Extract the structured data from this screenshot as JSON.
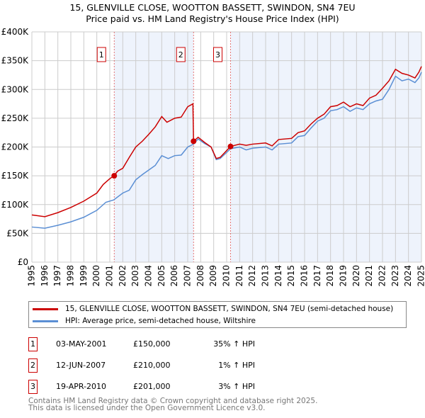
{
  "chart_data": {
    "type": "line",
    "title": "15, GLENVILLE CLOSE, WOOTTON BASSETT, SWINDON, SN4 7EU",
    "subtitle": "Price paid vs. HM Land Registry's House Price Index (HPI)",
    "xlim": [
      1995,
      2025
    ],
    "ylim": [
      0,
      400000
    ],
    "y_ticks": [
      {
        "v": 0,
        "label": "£0"
      },
      {
        "v": 50000,
        "label": "£50K"
      },
      {
        "v": 100000,
        "label": "£100K"
      },
      {
        "v": 150000,
        "label": "£150K"
      },
      {
        "v": 200000,
        "label": "£200K"
      },
      {
        "v": 250000,
        "label": "£250K"
      },
      {
        "v": 300000,
        "label": "£300K"
      },
      {
        "v": 350000,
        "label": "£350K"
      },
      {
        "v": 400000,
        "label": "£400K"
      }
    ],
    "x_ticks": [
      "1995",
      "1996",
      "1997",
      "1998",
      "1999",
      "2000",
      "2001",
      "2002",
      "2003",
      "2004",
      "2005",
      "2006",
      "2007",
      "2008",
      "2009",
      "2010",
      "2011",
      "2012",
      "2013",
      "2014",
      "2015",
      "2016",
      "2017",
      "2018",
      "2019",
      "2020",
      "2021",
      "2022",
      "2023",
      "2024",
      "2025"
    ],
    "grid": true,
    "series": [
      {
        "name": "15, GLENVILLE CLOSE, WOOTTON BASSETT, SWINDON, SN4 7EU (semi-detached house)",
        "color": "#cc0000",
        "points": [
          [
            1995,
            82000
          ],
          [
            1996,
            79000
          ],
          [
            1997,
            86000
          ],
          [
            1998,
            95000
          ],
          [
            1999,
            106000
          ],
          [
            2000,
            120000
          ],
          [
            2000.5,
            135000
          ],
          [
            2001,
            145000
          ],
          [
            2001.33,
            150000
          ],
          [
            2001.6,
            158000
          ],
          [
            2002,
            163000
          ],
          [
            2002.5,
            182000
          ],
          [
            2003,
            200000
          ],
          [
            2003.5,
            210000
          ],
          [
            2004,
            222000
          ],
          [
            2004.5,
            235000
          ],
          [
            2005,
            253000
          ],
          [
            2005.4,
            243000
          ],
          [
            2006,
            250000
          ],
          [
            2006.5,
            252000
          ],
          [
            2007,
            270000
          ],
          [
            2007.4,
            275000
          ],
          [
            2007.45,
            210000
          ],
          [
            2007.8,
            217000
          ],
          [
            2008.3,
            208000
          ],
          [
            2008.8,
            200000
          ],
          [
            2009.2,
            180000
          ],
          [
            2009.5,
            182000
          ],
          [
            2010.3,
            201000
          ],
          [
            2011,
            205000
          ],
          [
            2011.5,
            203000
          ],
          [
            2012,
            205000
          ],
          [
            2013,
            207000
          ],
          [
            2013.5,
            202000
          ],
          [
            2014,
            213000
          ],
          [
            2015,
            215000
          ],
          [
            2015.5,
            225000
          ],
          [
            2016,
            228000
          ],
          [
            2016.5,
            240000
          ],
          [
            2017,
            250000
          ],
          [
            2017.5,
            257000
          ],
          [
            2018,
            270000
          ],
          [
            2018.5,
            272000
          ],
          [
            2019,
            278000
          ],
          [
            2019.5,
            270000
          ],
          [
            2020,
            275000
          ],
          [
            2020.5,
            272000
          ],
          [
            2021,
            285000
          ],
          [
            2021.5,
            290000
          ],
          [
            2022,
            302000
          ],
          [
            2022.5,
            315000
          ],
          [
            2023,
            335000
          ],
          [
            2023.5,
            328000
          ],
          [
            2024,
            325000
          ],
          [
            2024.5,
            320000
          ],
          [
            2024.8,
            330000
          ],
          [
            2025,
            340000
          ]
        ]
      },
      {
        "name": "HPI: Average price, semi-detached house, Wiltshire",
        "color": "#5b8fd4",
        "points": [
          [
            1995,
            61000
          ],
          [
            1996,
            59000
          ],
          [
            1997,
            64000
          ],
          [
            1998,
            70000
          ],
          [
            1999,
            78000
          ],
          [
            2000,
            90000
          ],
          [
            2000.7,
            104000
          ],
          [
            2001.3,
            108000
          ],
          [
            2002,
            120000
          ],
          [
            2002.5,
            125000
          ],
          [
            2003,
            143000
          ],
          [
            2003.5,
            152000
          ],
          [
            2004,
            160000
          ],
          [
            2004.5,
            168000
          ],
          [
            2005,
            185000
          ],
          [
            2005.5,
            180000
          ],
          [
            2006,
            185000
          ],
          [
            2006.5,
            186000
          ],
          [
            2007,
            200000
          ],
          [
            2007.45,
            205000
          ],
          [
            2007.8,
            214000
          ],
          [
            2008.3,
            206000
          ],
          [
            2008.8,
            200000
          ],
          [
            2009.2,
            178000
          ],
          [
            2009.5,
            180000
          ],
          [
            2010.3,
            197000
          ],
          [
            2011,
            200000
          ],
          [
            2011.5,
            195000
          ],
          [
            2012,
            198000
          ],
          [
            2013,
            200000
          ],
          [
            2013.5,
            195000
          ],
          [
            2014,
            205000
          ],
          [
            2015,
            207000
          ],
          [
            2015.5,
            218000
          ],
          [
            2016,
            220000
          ],
          [
            2016.5,
            233000
          ],
          [
            2017,
            245000
          ],
          [
            2017.5,
            250000
          ],
          [
            2018,
            263000
          ],
          [
            2018.5,
            265000
          ],
          [
            2019,
            270000
          ],
          [
            2019.5,
            262000
          ],
          [
            2020,
            268000
          ],
          [
            2020.5,
            265000
          ],
          [
            2021,
            275000
          ],
          [
            2021.5,
            280000
          ],
          [
            2022,
            283000
          ],
          [
            2022.5,
            300000
          ],
          [
            2023,
            323000
          ],
          [
            2023.5,
            315000
          ],
          [
            2024,
            318000
          ],
          [
            2024.5,
            312000
          ],
          [
            2024.8,
            320000
          ],
          [
            2025,
            330000
          ]
        ]
      }
    ],
    "sales": [
      {
        "id": "1",
        "x": 2001.34,
        "price": 150000,
        "date": "03-MAY-2001",
        "price_label": "£150,000",
        "hpi": "35% ↑ HPI"
      },
      {
        "id": "2",
        "x": 2007.45,
        "price": 210000,
        "date": "12-JUN-2007",
        "price_label": "£210,000",
        "hpi": "1% ↑ HPI"
      },
      {
        "id": "3",
        "x": 2010.3,
        "price": 201000,
        "date": "19-APR-2010",
        "price_label": "£201,000",
        "hpi": "3% ↑ HPI"
      }
    ],
    "shade_color": "#eef3fc"
  },
  "footer": {
    "line1": "Contains HM Land Registry data © Crown copyright and database right 2025.",
    "line2": "This data is licensed under the Open Government Licence v3.0."
  }
}
